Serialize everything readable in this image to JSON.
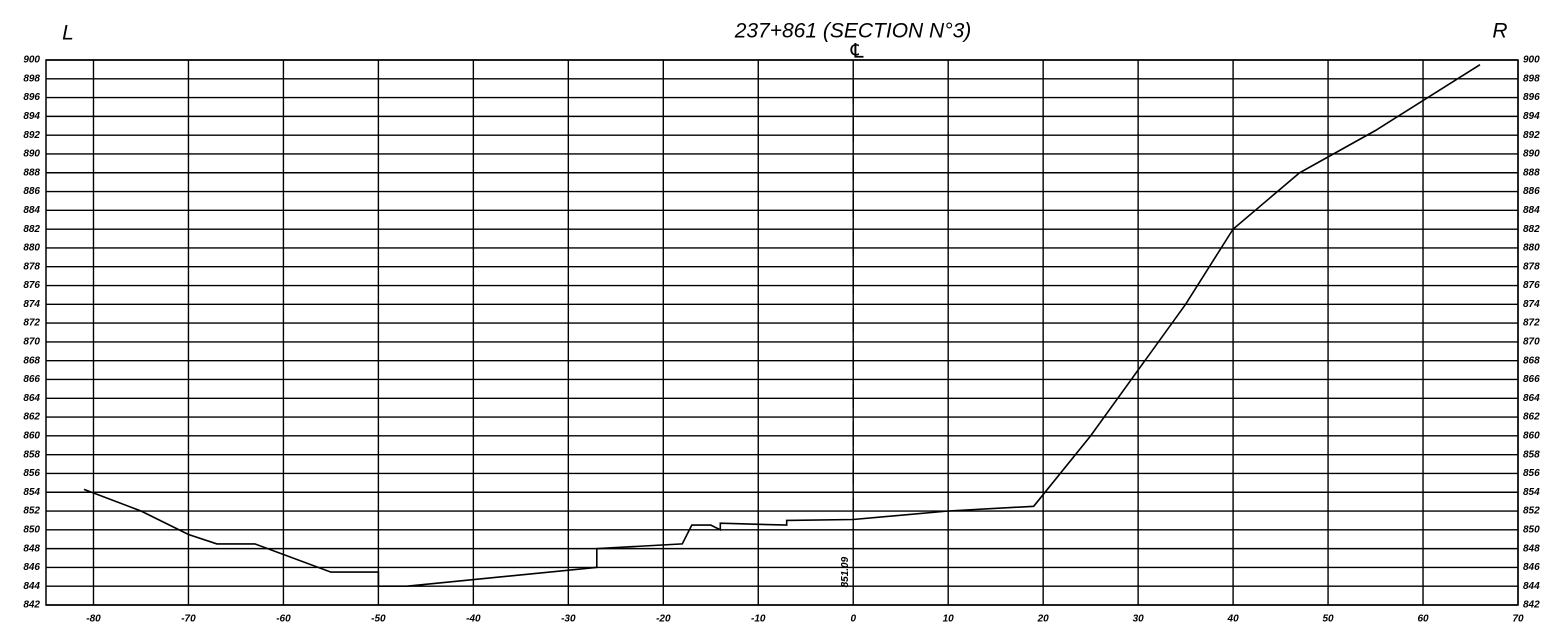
{
  "chart_data": {
    "type": "line",
    "title": "237+861 (SECTION N°3)",
    "left_label": "L",
    "right_label": "R",
    "centerline_label": "℄",
    "centerline_elevation": "851.09",
    "x": [
      -81,
      -75,
      -70,
      -67,
      -63,
      -55,
      -50,
      -50,
      -47,
      -27,
      -27,
      -18,
      -17,
      -15,
      -14,
      -14,
      -7,
      -7,
      0,
      10,
      19,
      25,
      35,
      40,
      47,
      55,
      66
    ],
    "values": [
      854.3,
      852,
      849.5,
      848.5,
      848.5,
      845.5,
      845.5,
      844,
      844,
      846,
      848,
      848.5,
      850.5,
      850.5,
      850,
      850.7,
      850.5,
      851,
      851.1,
      852,
      852.5,
      860,
      874,
      882,
      888,
      892.5,
      899.5
    ],
    "color": "#000000",
    "xlim": [
      -85,
      70
    ],
    "xticks": [
      -80,
      -70,
      -60,
      -50,
      -40,
      -30,
      -20,
      -10,
      0,
      10,
      20,
      30,
      40,
      50,
      60,
      70
    ],
    "ylim": [
      842,
      900
    ],
    "yticks": [
      842,
      844,
      846,
      848,
      850,
      852,
      854,
      856,
      858,
      860,
      862,
      864,
      866,
      868,
      870,
      872,
      874,
      876,
      878,
      880,
      882,
      884,
      886,
      888,
      890,
      892,
      894,
      896,
      898,
      900
    ],
    "grid": true
  }
}
